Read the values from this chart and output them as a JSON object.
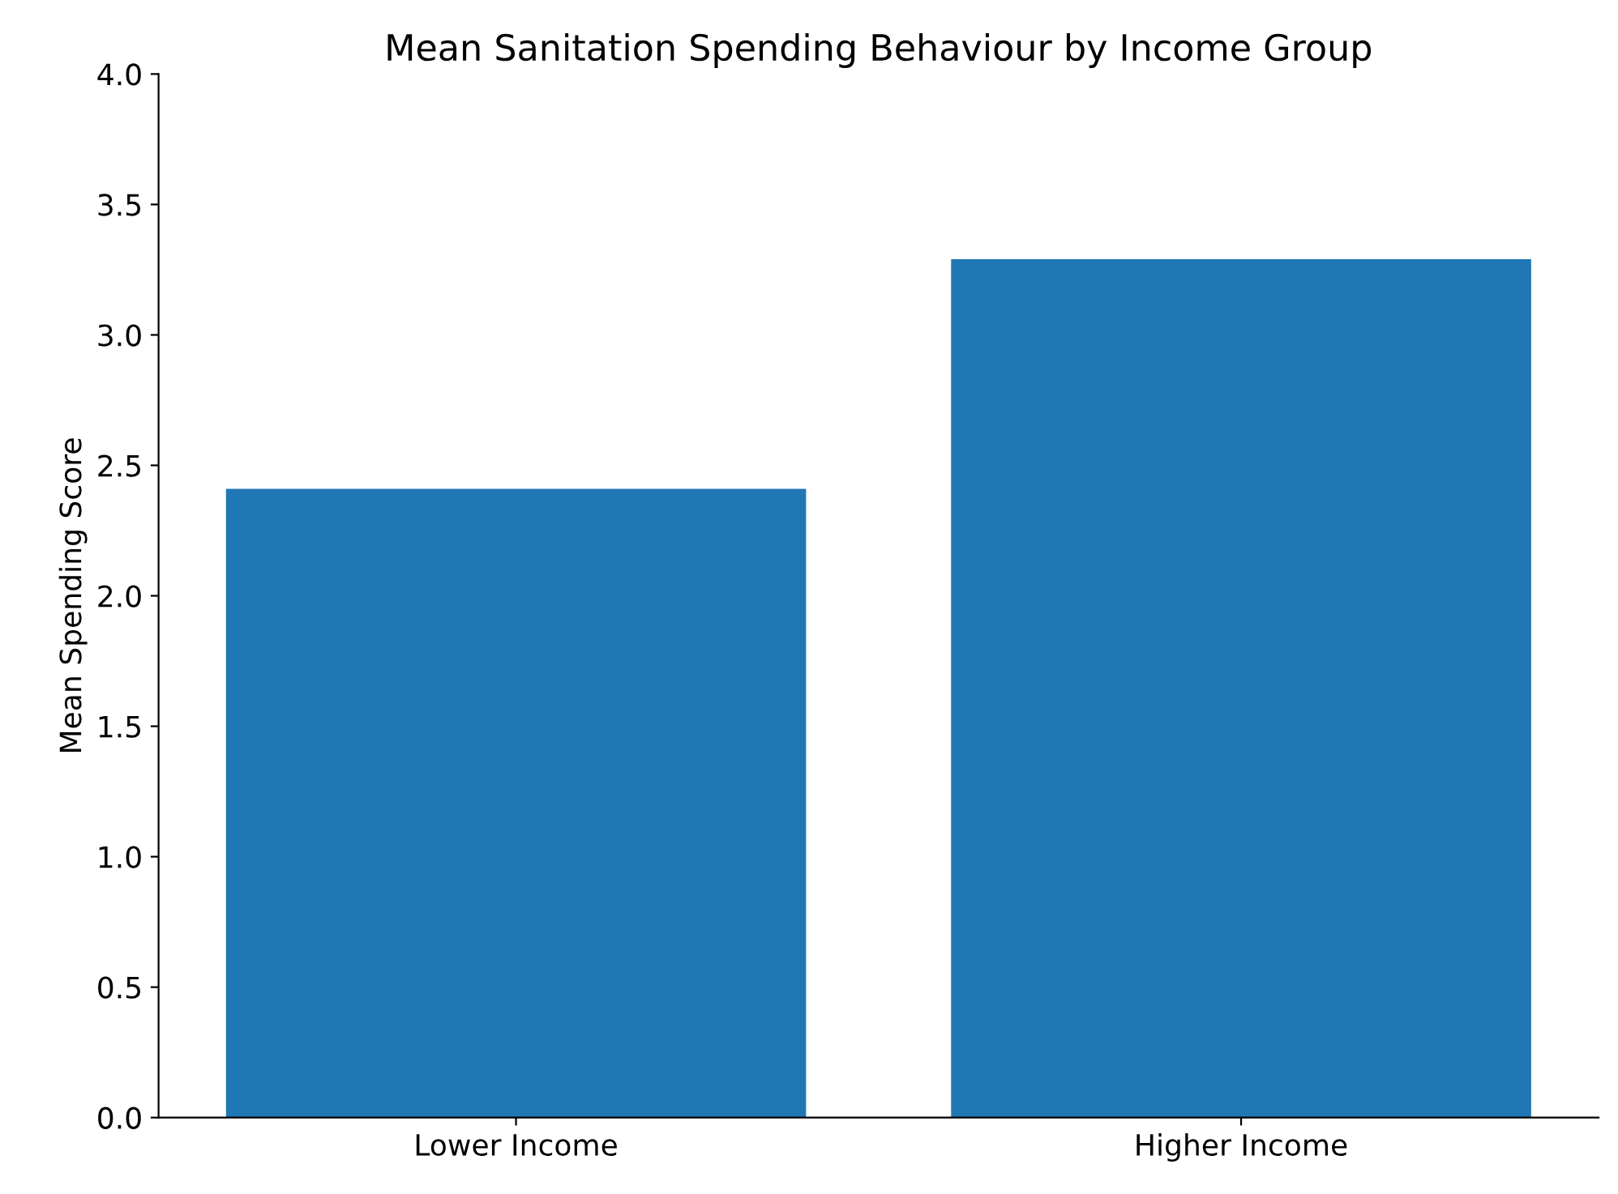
{
  "chart_data": {
    "type": "bar",
    "title": "Mean Sanitation Spending Behaviour by Income Group",
    "ylabel": "Mean Spending Score",
    "categories": [
      "Lower Income",
      "Higher Income"
    ],
    "values": [
      2.41,
      3.29
    ],
    "color": "#1f77b4",
    "ylim": [
      0,
      4
    ],
    "yticks": [
      {
        "value": 0,
        "label": "0.0"
      },
      {
        "value": 0.5,
        "label": "0.5"
      },
      {
        "value": 1,
        "label": "1.0"
      },
      {
        "value": 1.5,
        "label": "1.5"
      },
      {
        "value": 2,
        "label": "2.0"
      },
      {
        "value": 2.5,
        "label": "2.5"
      },
      {
        "value": 3,
        "label": "3.0"
      },
      {
        "value": 3.5,
        "label": "3.5"
      },
      {
        "value": 4,
        "label": "4.0"
      }
    ],
    "grid": false,
    "legend": false
  }
}
